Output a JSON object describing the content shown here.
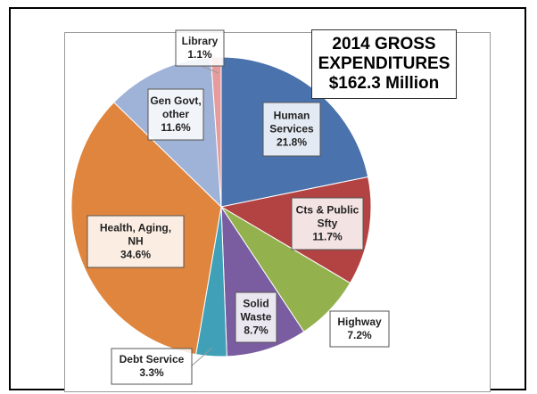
{
  "chart_data": {
    "type": "pie",
    "title_lines": [
      "2014 GROSS",
      "EXPENDITURES",
      "$162.3 Million"
    ],
    "slices": [
      {
        "label_lines": [
          "Human",
          "Services"
        ],
        "value": 21.8,
        "value_label": "21.8%",
        "color": "#4a72ad"
      },
      {
        "label_lines": [
          "Cts & Public",
          "Sfty"
        ],
        "value": 11.7,
        "value_label": "11.7%",
        "color": "#b34343"
      },
      {
        "label_lines": [
          "Highway"
        ],
        "value": 7.2,
        "value_label": "7.2%",
        "color": "#93b24e"
      },
      {
        "label_lines": [
          "Solid",
          "Waste"
        ],
        "value": 8.7,
        "value_label": "8.7%",
        "color": "#7a5ca0"
      },
      {
        "label_lines": [
          "Debt Service"
        ],
        "value": 3.3,
        "value_label": "3.3%",
        "color": "#3fa0b8"
      },
      {
        "label_lines": [
          "Health, Aging,",
          "NH"
        ],
        "value": 34.6,
        "value_label": "34.6%",
        "color": "#e0853d"
      },
      {
        "label_lines": [
          "Gen Govt,",
          "other"
        ],
        "value": 11.6,
        "value_label": "11.6%",
        "color": "#9fb3d8"
      },
      {
        "label_lines": [
          "Library"
        ],
        "value": 1.1,
        "value_label": "1.1%",
        "color": "#e69c9c"
      }
    ]
  }
}
